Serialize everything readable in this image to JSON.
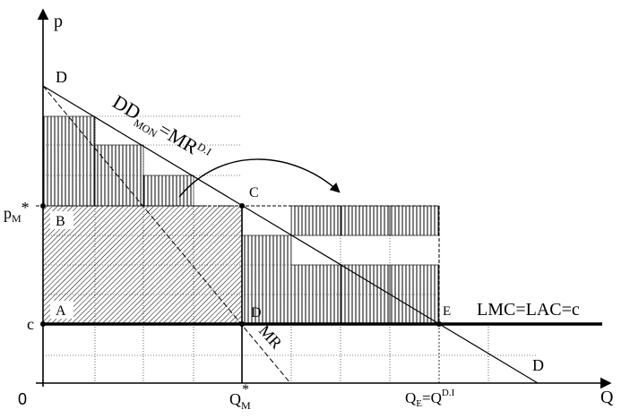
{
  "axes": {
    "y_label": "p",
    "x_label": "Q",
    "origin": "0"
  },
  "labels": {
    "demand_top": "D",
    "demand_bottom": "D",
    "dd_main": "DD",
    "dd_sub": "MON",
    "dd_eq": "=MR",
    "dd_sup": "D.I",
    "price_main": "p",
    "price_sub": "M",
    "price_star": "*",
    "cost_tick": "c",
    "qm_main": "Q",
    "qm_sub": "M",
    "qm_star": "*",
    "qe_main": "Q",
    "qe_sub": "E",
    "qe_eq": "=Q",
    "qe_sup": "D.I",
    "point_c": "C",
    "point_d": "D",
    "point_e": "E",
    "area_a": "A",
    "area_b": "B",
    "mr": "MR",
    "cost_line": "LMC=LAC=c"
  },
  "colors": {
    "line": "#000000",
    "background": "#ffffff"
  }
}
